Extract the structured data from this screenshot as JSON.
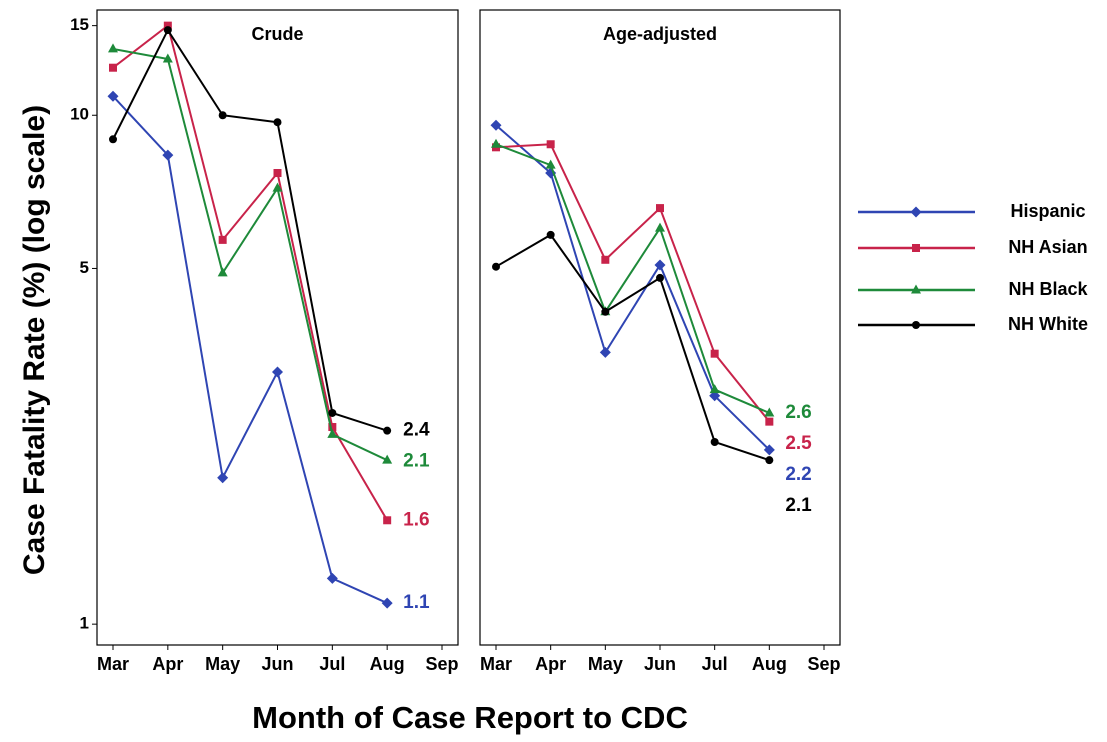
{
  "chart_data": [
    {
      "type": "line",
      "title": "Crude",
      "yscale": "log",
      "categories": [
        "Mar",
        "Apr",
        "May",
        "Jun",
        "Jul",
        "Aug",
        "Sep"
      ],
      "ylim": [
        0.91,
        16.1
      ],
      "yticks": [
        1,
        5,
        10,
        15
      ],
      "series": [
        {
          "name": "Hispanic",
          "color": "#2f45b3",
          "marker": "diamond",
          "values": [
            10.9,
            8.35,
            1.94,
            3.13,
            1.23,
            1.1,
            null
          ]
        },
        {
          "name": "NH Asian",
          "color": "#c8234a",
          "marker": "square",
          "values": [
            12.4,
            15,
            5.69,
            7.7,
            2.44,
            1.6,
            null
          ]
        },
        {
          "name": "NH Black",
          "color": "#1e8a3a",
          "marker": "triangle",
          "values": [
            13.5,
            12.9,
            4.9,
            7.19,
            2.36,
            2.1,
            null
          ]
        },
        {
          "name": "NH White",
          "color": "#000000",
          "marker": "circle",
          "values": [
            8.97,
            14.7,
            10.0,
            9.69,
            2.6,
            2.4,
            null
          ]
        }
      ]
    },
    {
      "type": "line",
      "title": "Age-adjusted",
      "yscale": "log",
      "categories": [
        "Mar",
        "Apr",
        "May",
        "Jun",
        "Jul",
        "Aug",
        "Sep"
      ],
      "ylim": [
        0.91,
        16.1
      ],
      "series": [
        {
          "color": "#2f45b3",
          "marker": "diamond",
          "values": [
            9.56,
            7.7,
            3.42,
            5.08,
            2.81,
            2.2,
            null
          ]
        },
        {
          "color": "#c8234a",
          "marker": "square",
          "values": [
            8.65,
            8.77,
            5.2,
            6.57,
            3.4,
            2.5,
            null
          ]
        },
        {
          "color": "#1e8a3a",
          "marker": "triangle",
          "values": [
            8.77,
            7.98,
            4.11,
            6.0,
            2.89,
            2.6,
            null
          ]
        },
        {
          "color": "#000000",
          "marker": "circle",
          "values": [
            5.04,
            5.82,
            4.11,
            4.79,
            2.28,
            2.1,
            null
          ]
        }
      ]
    }
  ],
  "ylabel": "Case Fatality Rate (%) (log scale)",
  "xlabel": "Month of Case Report to CDC"
}
